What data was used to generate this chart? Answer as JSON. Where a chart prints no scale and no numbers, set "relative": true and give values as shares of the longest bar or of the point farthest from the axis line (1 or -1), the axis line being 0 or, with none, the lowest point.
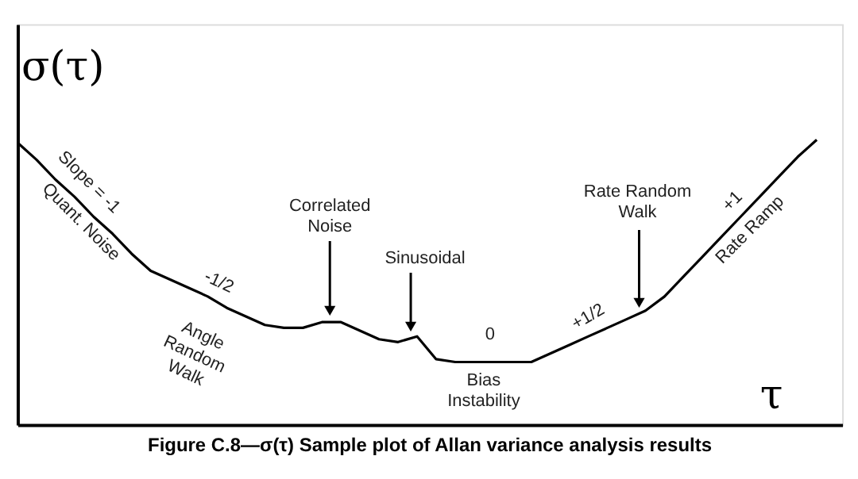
{
  "chart_data": {
    "type": "line",
    "relative": true,
    "title": "Figure C.8—σ(τ)  Sample plot of Allan variance analysis results",
    "xlabel": "τ",
    "ylabel": "σ(τ)",
    "categories": [
      null,
      null,
      null,
      null,
      null,
      null,
      null,
      null,
      null,
      null,
      null,
      null,
      null,
      null,
      null,
      null,
      null,
      null,
      null,
      null,
      null,
      null,
      null,
      null,
      null,
      null,
      null,
      null,
      null,
      null,
      null,
      null,
      null,
      null,
      null,
      null,
      null,
      null,
      null,
      null,
      null,
      null,
      null
    ],
    "series": [
      {
        "color": "#000000",
        "values": [
          0.99,
          0.93,
          0.86,
          0.8,
          0.73,
          0.67,
          0.6,
          0.54,
          0.51,
          0.48,
          0.45,
          0.41,
          0.38,
          0.35,
          0.34,
          0.34,
          0.36,
          0.36,
          0.33,
          0.3,
          0.29,
          0.31,
          0.23,
          0.22,
          0.22,
          0.22,
          0.22,
          0.22,
          0.25,
          0.28,
          0.31,
          0.34,
          0.37,
          0.4,
          0.45,
          0.52,
          0.59,
          0.66,
          0.73,
          0.8,
          0.87,
          0.94,
          1.0
        ]
      }
    ],
    "annotations": [
      "Slope = -1",
      "Quant. Noise",
      "-1/2",
      "Angle\nRandom\nWalk",
      "Correlated\nNoise",
      "Sinusoidal",
      "0",
      "Bias\nInstability",
      "+1/2",
      "Rate Random\nWalk",
      "+1",
      "Rate Ramp"
    ],
    "tick_labels": false,
    "grid": false,
    "marker": "none",
    "line_style": "solid"
  }
}
